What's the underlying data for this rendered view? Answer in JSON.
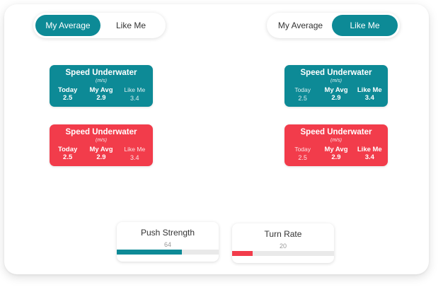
{
  "toggles": {
    "left": {
      "options": [
        "My Average",
        "Like Me"
      ],
      "selected": 0
    },
    "right": {
      "options": [
        "My Average",
        "Like Me"
      ],
      "selected": 1
    }
  },
  "cards": {
    "title": "Speed Underwater",
    "unit": "(m/s)",
    "col_labels": [
      "Today",
      "My Avg",
      "Like Me"
    ],
    "values": [
      "2.5",
      "2.9",
      "3.4"
    ]
  },
  "metrics": [
    {
      "title": "Push Strength",
      "value": "64",
      "fill_pct": 64,
      "color": "#0d8a96"
    },
    {
      "title": "Turn Rate",
      "value": "20",
      "fill_pct": 20,
      "color": "#f23c4b"
    }
  ],
  "colors": {
    "teal": "#0d8a96",
    "red": "#f23c4b"
  }
}
